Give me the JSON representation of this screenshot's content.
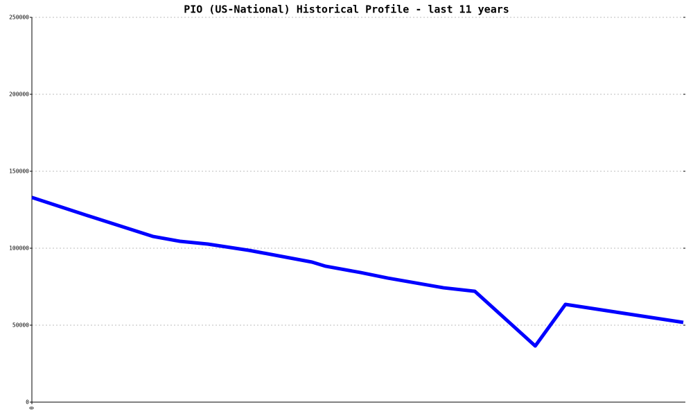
{
  "chart_data": {
    "type": "line",
    "title": "PIO (US-National) Historical Profile - last 11 years",
    "x": [
      0,
      0.98,
      2.04,
      2.5,
      2.97,
      3.67,
      4.73,
      4.96,
      5.55,
      6.01,
      6.95,
      7.48,
      8.5,
      9.01,
      11
    ],
    "series": [
      {
        "color": "#0000ff",
        "values": [
          133000,
          120700,
          107700,
          104500,
          102700,
          98600,
          91000,
          88300,
          84200,
          80600,
          74300,
          72000,
          36500,
          63500,
          51800
        ]
      }
    ],
    "xlim": [
      0,
      11
    ],
    "xticks": [
      0
    ],
    "ylim": [
      0,
      250000
    ],
    "yticks": [
      0,
      50000,
      100000,
      150000,
      200000,
      250000
    ],
    "grid": true
  }
}
